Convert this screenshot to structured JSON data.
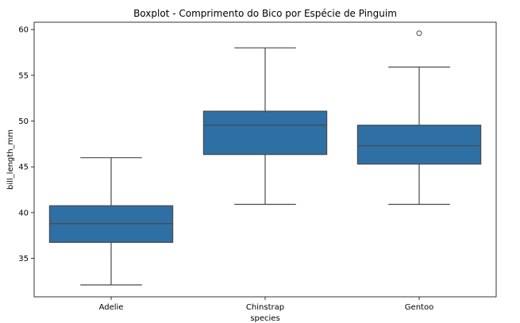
{
  "chart_data": {
    "type": "boxplot",
    "title": "Boxplot - Comprimento do Bico por Espécie de Pinguim",
    "xlabel": "species",
    "ylabel": "bill_length_mm",
    "categories": [
      "Adelie",
      "Chinstrap",
      "Gentoo"
    ],
    "ylim": [
      30.8,
      60.8
    ],
    "yticks": [
      35,
      40,
      45,
      50,
      55,
      60
    ],
    "boxes": [
      {
        "category": "Adelie",
        "whisker_low": 32.1,
        "q1": 36.75,
        "median": 38.8,
        "q3": 40.75,
        "whisker_high": 46.0,
        "outliers": []
      },
      {
        "category": "Chinstrap",
        "whisker_low": 40.9,
        "q1": 46.35,
        "median": 49.55,
        "q3": 51.08,
        "whisker_high": 58.0,
        "outliers": []
      },
      {
        "category": "Gentoo",
        "whisker_low": 40.9,
        "q1": 45.3,
        "median": 47.3,
        "q3": 49.55,
        "whisker_high": 55.9,
        "outliers": [
          59.6
        ]
      }
    ],
    "grid": false,
    "colors": {
      "box_fill": "#2e6fa4",
      "line": "#4a4a4a",
      "axis": "#000000"
    }
  }
}
